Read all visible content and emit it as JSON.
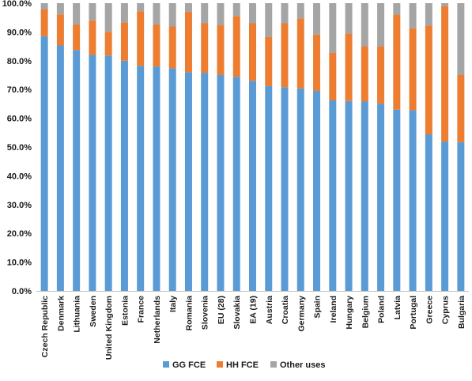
{
  "chart_data": {
    "type": "bar",
    "stacked": true,
    "title": "",
    "xlabel": "",
    "ylabel": "",
    "ylim": [
      0,
      100
    ],
    "y_ticks": [
      "0.0%",
      "10.0%",
      "20.0%",
      "30.0%",
      "40.0%",
      "50.0%",
      "60.0%",
      "70.0%",
      "80.0%",
      "90.0%",
      "100.0%"
    ],
    "grid": false,
    "legend_position": "bottom",
    "categories": [
      "Czech Republic",
      "Denmark",
      "Lithuania",
      "Sweden",
      "United Kingdom",
      "Estonia",
      "France",
      "Netherlands",
      "Italy",
      "Romania",
      "Slovenia",
      "EU (28)",
      "Slovakia",
      "EA (19)",
      "Austria",
      "Croatia",
      "Germany",
      "Spain",
      "Ireland",
      "Hungary",
      "Belgium",
      "Poland",
      "Latvia",
      "Portugal",
      "Greece",
      "Cyprus",
      "Bulgaria"
    ],
    "series": [
      {
        "name": "GG FCE",
        "color": "#5b9bd5",
        "values": [
          88.5,
          85.3,
          83.7,
          82.0,
          81.8,
          80.0,
          78.2,
          78.0,
          77.3,
          76.0,
          75.8,
          75.0,
          74.4,
          73.0,
          71.2,
          70.8,
          70.4,
          69.5,
          66.2,
          66.0,
          65.8,
          65.0,
          63.0,
          62.8,
          54.4,
          51.9,
          51.7
        ]
      },
      {
        "name": "HH FCE",
        "color": "#ed7d31",
        "values": [
          9.3,
          10.8,
          8.9,
          12.0,
          8.2,
          13.3,
          19.0,
          14.6,
          14.6,
          21.0,
          17.2,
          17.3,
          21.1,
          20.0,
          17.1,
          22.2,
          24.3,
          19.6,
          16.5,
          23.4,
          19.2,
          20.0,
          33.0,
          28.5,
          37.8,
          47.1,
          23.3
        ]
      },
      {
        "name": "Other uses",
        "color": "#a5a5a5",
        "values": [
          2.2,
          3.9,
          7.4,
          6.0,
          10.0,
          6.7,
          2.8,
          7.4,
          8.1,
          3.0,
          7.0,
          7.7,
          4.5,
          7.0,
          11.7,
          7.0,
          5.3,
          10.9,
          17.3,
          10.6,
          15.0,
          15.0,
          4.0,
          8.7,
          7.8,
          1.0,
          25.0
        ]
      }
    ]
  }
}
